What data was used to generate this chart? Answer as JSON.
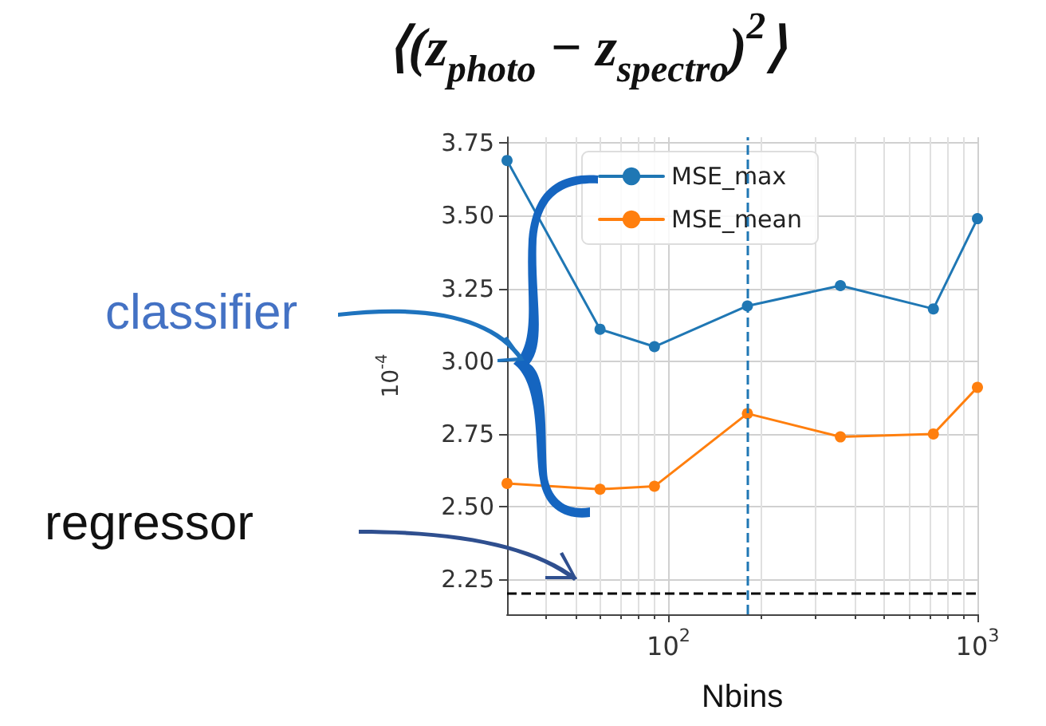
{
  "chart_data": {
    "type": "line",
    "title": "⟨(z$_{photo}$ − z$_{spectro}$)$^{2}$⟩",
    "xlabel": "Nbins",
    "ylabel": "10$^{-4}$",
    "annotations": [
      "classifier",
      "regressor"
    ],
    "x": [
      30,
      60,
      90,
      180,
      360,
      720,
      1000
    ],
    "series": [
      {
        "name": "MSE_max",
        "color": "#1f77b4",
        "values": [
          3.69,
          3.11,
          3.05,
          3.19,
          3.26,
          3.18,
          3.49
        ]
      },
      {
        "name": "MSE_mean",
        "color": "#ff7f0e",
        "values": [
          2.58,
          2.56,
          2.57,
          2.82,
          2.74,
          2.75,
          2.91
        ]
      }
    ],
    "log": "x",
    "xlim": [
      30,
      1000
    ],
    "ylim": [
      2.13,
      3.77
    ],
    "xticks": [
      {
        "value": 100,
        "label": "10$^{2}$"
      },
      {
        "value": 1000,
        "label": "10$^{3}$"
      }
    ],
    "yticks": [
      2.25,
      {
        "value": 2.5,
        "label": "2.50"
      },
      2.75,
      {
        "value": 3.0,
        "label": "3.00"
      },
      3.25,
      {
        "value": 3.5,
        "label": "3.50"
      },
      3.75
    ],
    "ref_lines": [
      {
        "axis": "x",
        "value": 180,
        "color": "#1f77b4",
        "line_style": "dashed"
      },
      {
        "axis": "y",
        "value": 2.2,
        "color": "#000000",
        "line_style": "dashed"
      }
    ],
    "grid": true,
    "legend": "top",
    "marker": "circle",
    "line_style": "solid"
  }
}
